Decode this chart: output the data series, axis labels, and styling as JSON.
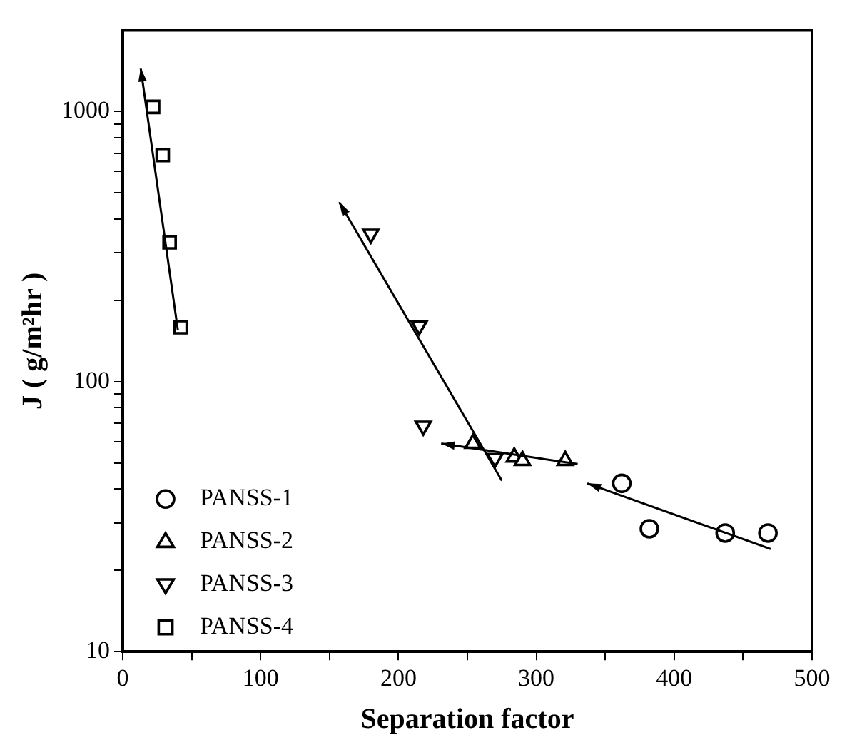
{
  "chart_data": {
    "type": "scatter",
    "xlabel": "Separation factor",
    "ylabel": "J ( g/m²hr )",
    "xlim": [
      0,
      500
    ],
    "xticks": [
      0,
      {
        "value": 50,
        "label": null
      },
      100,
      {
        "value": 150,
        "label": null
      },
      200,
      {
        "value": 250,
        "label": null
      },
      300,
      {
        "value": 350,
        "label": null
      },
      400,
      {
        "value": 450,
        "label": null
      },
      500
    ],
    "ylim": [
      10,
      2000
    ],
    "log": "y",
    "yticks": [
      10,
      {
        "value": 20,
        "label": null
      },
      {
        "value": 30,
        "label": null
      },
      {
        "value": 40,
        "label": null
      },
      {
        "value": 50,
        "label": null
      },
      {
        "value": 60,
        "label": null
      },
      {
        "value": 70,
        "label": null
      },
      {
        "value": 80,
        "label": null
      },
      {
        "value": 90,
        "label": null
      },
      100,
      {
        "value": 200,
        "label": null
      },
      {
        "value": 300,
        "label": null
      },
      {
        "value": 400,
        "label": null
      },
      {
        "value": 500,
        "label": null
      },
      {
        "value": 600,
        "label": null
      },
      {
        "value": 700,
        "label": null
      },
      {
        "value": 800,
        "label": null
      },
      {
        "value": 900,
        "label": null
      },
      1000
    ],
    "grid": false,
    "legend": "bottom left",
    "series": [
      {
        "name": "PANSS-1",
        "marker": "circle",
        "color": "#000000",
        "x": [
          362,
          382,
          437,
          468
        ],
        "values": [
          42,
          28.5,
          27.5,
          27.5
        ]
      },
      {
        "name": "PANSS-2",
        "marker": "triangle",
        "color": "#000000",
        "x": [
          254,
          284,
          290,
          321
        ],
        "values": [
          59,
          52.5,
          51,
          51
        ]
      },
      {
        "name": "PANSS-3",
        "marker": "triangle-down",
        "color": "#000000",
        "x": [
          180,
          215,
          218,
          270
        ],
        "values": [
          352,
          161,
          68.5,
          52
        ]
      },
      {
        "name": "PANSS-4",
        "marker": "square",
        "color": "#000000",
        "x": [
          22,
          29,
          34,
          42
        ],
        "values": [
          1040,
          690,
          328,
          159
        ]
      }
    ]
  }
}
